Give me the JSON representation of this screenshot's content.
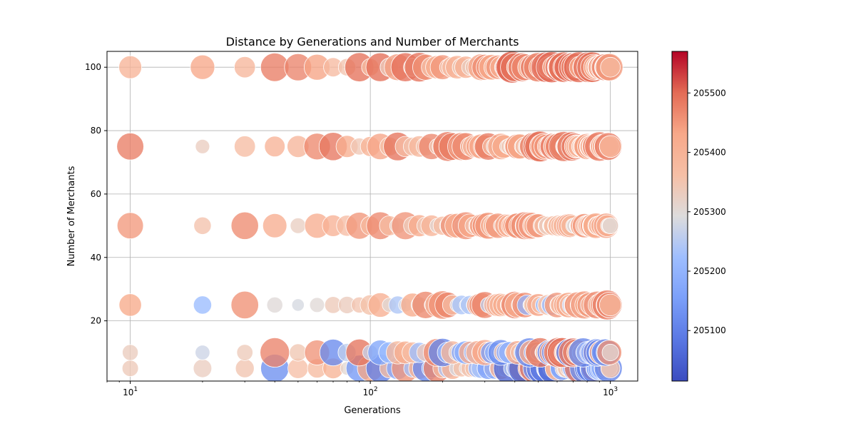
{
  "chart_data": {
    "type": "scatter",
    "title": "Distance by Generations and Number of Merchants",
    "xlabel": "Generations",
    "ylabel": "Number of Merchants",
    "x_scale": "log",
    "xlim": [
      8,
      1300
    ],
    "ylim": [
      1,
      105
    ],
    "x_ticks": [
      {
        "value": 10,
        "base": "10",
        "exp": "1"
      },
      {
        "value": 100,
        "base": "10",
        "exp": "2"
      },
      {
        "value": 1000,
        "base": "10",
        "exp": "3"
      }
    ],
    "y_ticks": [
      20,
      40,
      60,
      80,
      100
    ],
    "grid": true,
    "merchant_levels": [
      5,
      10,
      25,
      50,
      75,
      100
    ],
    "generations": [
      10,
      20,
      30,
      40,
      50,
      60,
      70,
      80,
      90,
      100,
      110,
      120,
      130,
      140,
      150,
      160,
      170,
      180,
      190,
      200,
      210,
      220,
      230,
      240,
      250,
      260,
      270,
      280,
      290,
      300,
      310,
      320,
      330,
      340,
      350,
      360,
      370,
      380,
      390,
      400,
      410,
      420,
      430,
      440,
      450,
      460,
      470,
      480,
      490,
      500,
      510,
      520,
      530,
      540,
      550,
      560,
      570,
      580,
      590,
      600,
      610,
      620,
      630,
      640,
      650,
      660,
      670,
      680,
      690,
      700,
      710,
      720,
      730,
      740,
      750,
      760,
      770,
      780,
      790,
      800,
      810,
      820,
      830,
      840,
      850,
      860,
      870,
      880,
      890,
      900,
      910,
      920,
      930,
      940,
      950,
      960,
      970,
      980,
      990,
      1000
    ],
    "colorbar": {
      "min": 205015,
      "max": 205570,
      "ticks": [
        "205100",
        "205200",
        "205300",
        "205400",
        "205500"
      ],
      "tick_values": [
        205100,
        205200,
        205300,
        205400,
        205500
      ],
      "colormap": "coolwarm",
      "low_color": "#3b4cc0",
      "mid_color": "#dddddd",
      "high_color": "#b40426"
    }
  }
}
